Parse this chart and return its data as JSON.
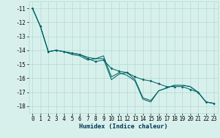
{
  "title": "",
  "xlabel": "Humidex (Indice chaleur)",
  "ylabel": "",
  "background_color": "#d8f0ec",
  "grid_color": "#b0d8d0",
  "line_color": "#006666",
  "x_values": [
    0,
    1,
    2,
    3,
    4,
    5,
    6,
    7,
    8,
    9,
    10,
    11,
    12,
    13,
    14,
    15,
    16,
    17,
    18,
    19,
    20,
    21,
    22,
    23
  ],
  "line1": [
    -11.0,
    -12.3,
    -14.1,
    -14.0,
    -14.1,
    -14.2,
    -14.3,
    -14.5,
    -14.6,
    -14.6,
    -16.1,
    -15.7,
    -15.6,
    -16.1,
    -17.4,
    -17.6,
    -16.9,
    -16.7,
    -16.5,
    -16.5,
    -16.6,
    -17.0,
    -17.7,
    -17.8
  ],
  "line2": [
    -11.0,
    -12.3,
    -14.1,
    -14.0,
    -14.1,
    -14.2,
    -14.3,
    -14.6,
    -14.8,
    -14.7,
    -15.3,
    -15.5,
    -15.6,
    -15.9,
    -16.1,
    -16.2,
    -16.4,
    -16.6,
    -16.6,
    -16.6,
    -16.8,
    -17.0,
    -17.7,
    -17.8
  ],
  "line3": [
    -11.0,
    -12.3,
    -14.1,
    -14.0,
    -14.1,
    -14.3,
    -14.4,
    -14.7,
    -14.6,
    -14.4,
    -15.9,
    -15.6,
    -15.8,
    -16.2,
    -17.5,
    -17.7,
    -16.9,
    -16.7,
    -16.5,
    -16.5,
    -16.6,
    -17.0,
    -17.7,
    -17.8
  ],
  "ylim": [
    -18.5,
    -10.5
  ],
  "xlim": [
    -0.5,
    23.5
  ],
  "yticks": [
    -18,
    -17,
    -16,
    -15,
    -14,
    -13,
    -12,
    -11
  ],
  "xticks": [
    0,
    1,
    2,
    3,
    4,
    5,
    6,
    7,
    8,
    9,
    10,
    11,
    12,
    13,
    14,
    15,
    16,
    17,
    18,
    19,
    20,
    21,
    22,
    23
  ],
  "tick_fontsize": 5.5,
  "xlabel_fontsize": 6.5,
  "linewidth": 0.8,
  "marker_size": 2.0
}
